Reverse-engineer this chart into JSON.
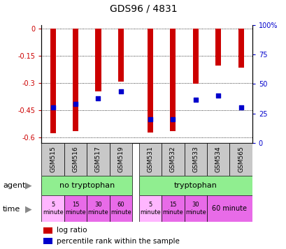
{
  "title": "GDS96 / 4831",
  "samples": [
    "GSM515",
    "GSM516",
    "GSM517",
    "GSM519",
    "GSM531",
    "GSM532",
    "GSM533",
    "GSM534",
    "GSM565"
  ],
  "log_ratio": [
    -0.575,
    -0.565,
    -0.345,
    -0.29,
    -0.572,
    -0.562,
    -0.305,
    -0.205,
    -0.215
  ],
  "percentile_rank": [
    30,
    33,
    38,
    44,
    20,
    20,
    37,
    40,
    30
  ],
  "ylim_left": [
    -0.63,
    0.02
  ],
  "ylim_right": [
    0,
    100
  ],
  "yticks_left": [
    0,
    -0.15,
    -0.3,
    -0.45,
    -0.6
  ],
  "yticks_right": [
    0,
    25,
    50,
    75,
    100
  ],
  "bar_color": "#CC0000",
  "dot_color": "#0000CC",
  "bar_width": 0.25,
  "tick_color_left": "#CC0000",
  "tick_color_right": "#0000CC",
  "time_colors": [
    "#FFB6FF",
    "#E86BE8",
    "#E86BE8",
    "#E86BE8",
    "#FFB6FF",
    "#E86BE8",
    "#E86BE8"
  ],
  "time_texts": [
    "5\nminute",
    "15\nminute",
    "30\nminute",
    "60\nminute",
    "5\nminute",
    "15\nminute",
    "30\nminute"
  ],
  "agent_color": "#90EE90",
  "time_last_color": "#E86BE8",
  "sample_bg": "#C8C8C8"
}
